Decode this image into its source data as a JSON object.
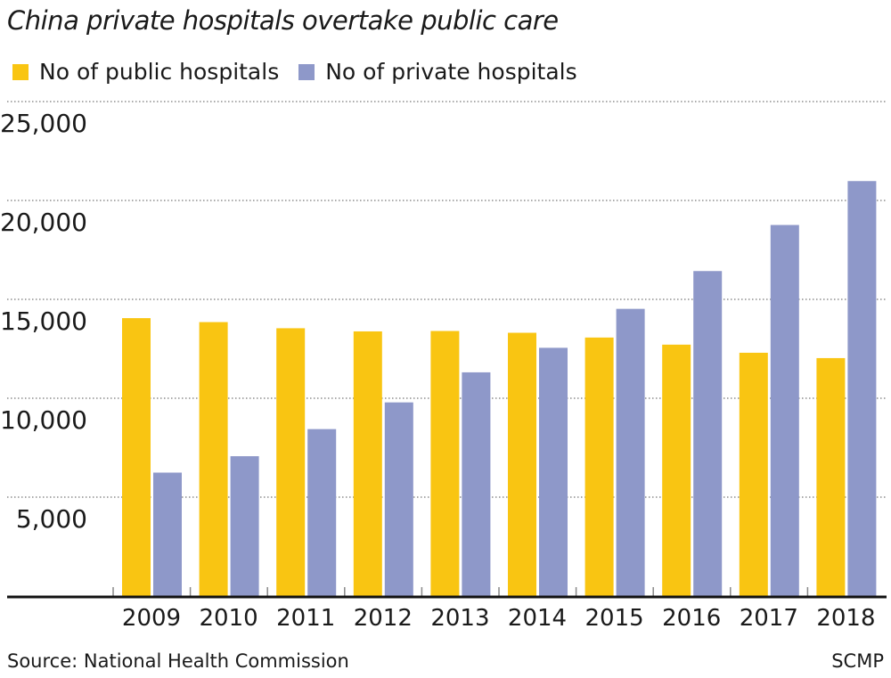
{
  "title": "China private hospitals overtake public care",
  "source": "Source: National Health Commission",
  "brand": "SCMP",
  "chart_data": {
    "type": "bar",
    "title": "China private hospitals overtake public care",
    "xlabel": "",
    "ylabel": "",
    "categories": [
      "2009",
      "2010",
      "2011",
      "2012",
      "2013",
      "2014",
      "2015",
      "2016",
      "2017",
      "2018"
    ],
    "series": [
      {
        "name": "No of public hospitals",
        "color": "#F9C512",
        "values": [
          14050,
          13850,
          13540,
          13380,
          13400,
          13310,
          13070,
          12710,
          12300,
          12030
        ]
      },
      {
        "name": "No of private hospitals",
        "color": "#8E98C9",
        "values": [
          6240,
          7070,
          8440,
          9790,
          11310,
          12550,
          14520,
          16430,
          18760,
          20980
        ]
      }
    ],
    "ylim": [
      0,
      25000
    ],
    "yticks": [
      5000,
      10000,
      15000,
      20000,
      25000
    ],
    "ytick_labels": [
      "5,000",
      "10,000",
      "15,000",
      "20,000",
      "25,000"
    ],
    "grid": "horizontal dotted",
    "legend": "top-left"
  }
}
